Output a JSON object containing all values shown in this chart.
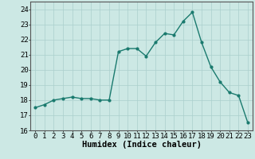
{
  "x": [
    0,
    1,
    2,
    3,
    4,
    5,
    6,
    7,
    8,
    9,
    10,
    11,
    12,
    13,
    14,
    15,
    16,
    17,
    18,
    19,
    20,
    21,
    22,
    23
  ],
  "y": [
    17.5,
    17.7,
    18.0,
    18.1,
    18.2,
    18.1,
    18.1,
    18.0,
    18.0,
    21.2,
    21.4,
    21.4,
    20.9,
    21.8,
    22.4,
    22.3,
    23.2,
    23.8,
    21.8,
    20.2,
    19.2,
    18.5,
    18.3,
    16.5
  ],
  "line_color": "#1a7a6e",
  "marker": "o",
  "markersize": 2.0,
  "linewidth": 1.0,
  "bg_color": "#cce8e4",
  "grid_color": "#aacfcc",
  "xlabel": "Humidex (Indice chaleur)",
  "ylim": [
    16,
    24.5
  ],
  "xlim": [
    -0.5,
    23.5
  ],
  "yticks": [
    16,
    17,
    18,
    19,
    20,
    21,
    22,
    23,
    24
  ],
  "xticks": [
    0,
    1,
    2,
    3,
    4,
    5,
    6,
    7,
    8,
    9,
    10,
    11,
    12,
    13,
    14,
    15,
    16,
    17,
    18,
    19,
    20,
    21,
    22,
    23
  ],
  "xlabel_fontsize": 7.5,
  "tick_fontsize": 6.5,
  "ytick_fontsize": 6.5
}
